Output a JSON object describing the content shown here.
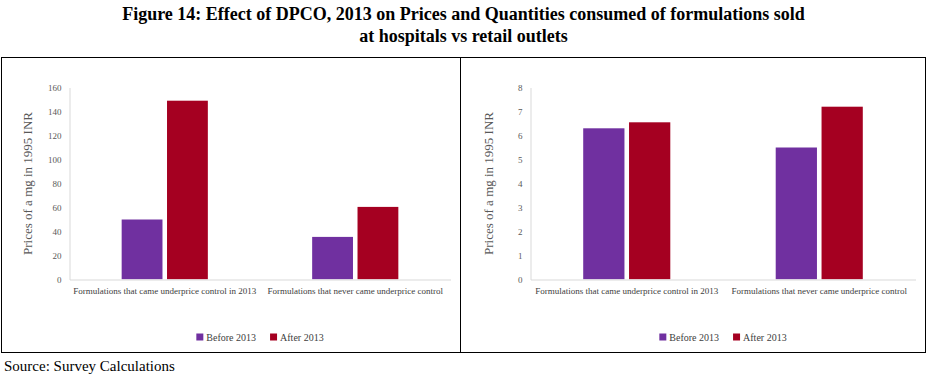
{
  "title": [
    "Figure 14: Effect of DPCO, 2013 on Prices and Quantities consumed of formulations sold",
    "at hospitals vs retail outlets"
  ],
  "source": "Source: Survey Calculations",
  "chart_data": [
    {
      "type": "bar",
      "y_label": "Prices of a mg in 1995 INR",
      "categories": [
        "Formulations that came underprice control in 2013",
        "Formulations that never came underprice control"
      ],
      "series": [
        {
          "name": "Before 2013",
          "color": "#7030a0",
          "values": [
            50,
            35.5
          ]
        },
        {
          "name": "After 2013",
          "color": "#a50021",
          "values": [
            149,
            60.5
          ]
        }
      ],
      "ylim": [
        0,
        160
      ],
      "yticks": [
        0,
        20,
        40,
        60,
        80,
        100,
        120,
        140,
        160
      ],
      "grid": false,
      "legend": "bottom"
    },
    {
      "type": "bar",
      "y_label": "Prices of a mg in 1995 INR",
      "categories": [
        "Formulations that came underprice control in 2013",
        "Formulations that never came underprice control"
      ],
      "series": [
        {
          "name": "Before 2013",
          "color": "#7030a0",
          "values": [
            6.3,
            5.5
          ]
        },
        {
          "name": "After 2013",
          "color": "#a50021",
          "values": [
            6.55,
            7.2
          ]
        }
      ],
      "ylim": [
        0,
        8
      ],
      "yticks": [
        0,
        1,
        2,
        3,
        4,
        5,
        6,
        7,
        8
      ],
      "grid": false,
      "legend": "bottom"
    }
  ]
}
